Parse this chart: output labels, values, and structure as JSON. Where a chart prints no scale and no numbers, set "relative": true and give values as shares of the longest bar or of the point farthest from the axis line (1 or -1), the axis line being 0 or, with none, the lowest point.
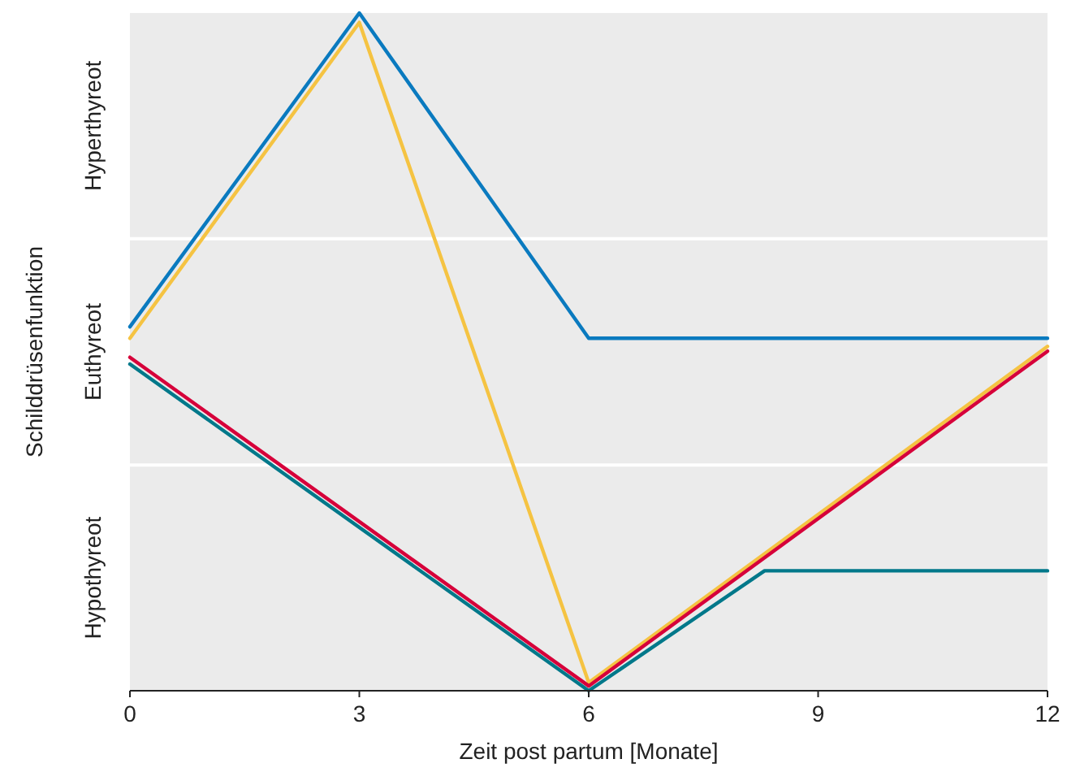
{
  "chart_data": {
    "type": "line",
    "relative": true,
    "xlabel": "Zeit post partum [Monate]",
    "ylabel": "Schilddrüsenfunktion",
    "xlim": [
      0,
      12
    ],
    "xticks": [
      0,
      3,
      6,
      9,
      12
    ],
    "ref_lines": [
      {
        "axis": "y",
        "value": 0.333,
        "color": "#ffffff"
      },
      {
        "axis": "y",
        "value": 0.667,
        "color": "#ffffff"
      }
    ],
    "annotations": [
      "Hypothyreot",
      "Euthyreot",
      "Hyperthyreot"
    ],
    "series": [
      {
        "color": "#0a7abf",
        "x": [
          0,
          3,
          6,
          12
        ],
        "values": [
          0.537,
          1,
          0.52,
          0.52
        ]
      },
      {
        "color": "#f5c342",
        "x": [
          0,
          3,
          6,
          12
        ],
        "values": [
          0.52,
          0.986,
          0.012,
          0.508
        ]
      },
      {
        "color": "#d6003a",
        "x": [
          0,
          6,
          12
        ],
        "values": [
          0.492,
          0.007,
          0.501
        ]
      },
      {
        "color": "#00788a",
        "x": [
          0,
          6,
          8.3,
          12
        ],
        "values": [
          0.482,
          0,
          0.177,
          0.177
        ]
      }
    ]
  }
}
